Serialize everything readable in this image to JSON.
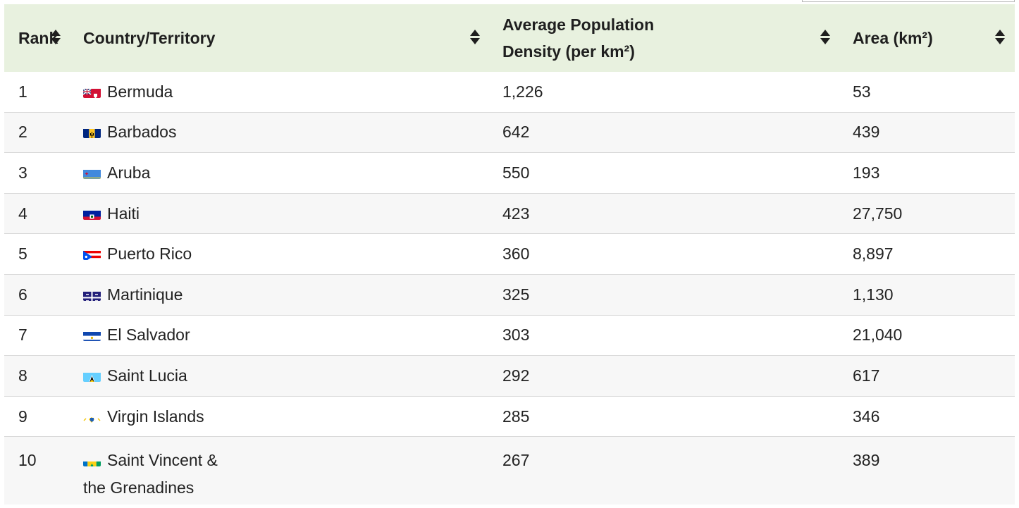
{
  "table": {
    "headers": {
      "rank": "Rank",
      "country": "Country/Territory",
      "density": "Average Population Density (per km²)",
      "area": "Area (km²)"
    },
    "rows": [
      {
        "rank": "1",
        "country": "Bermuda",
        "density": "1,226",
        "area": "53",
        "flag": "bermuda-flag-icon"
      },
      {
        "rank": "2",
        "country": "Barbados",
        "density": "642",
        "area": "439",
        "flag": "barbados-flag-icon"
      },
      {
        "rank": "3",
        "country": "Aruba",
        "density": "550",
        "area": "193",
        "flag": "aruba-flag-icon"
      },
      {
        "rank": "4",
        "country": "Haiti",
        "density": "423",
        "area": "27,750",
        "flag": "haiti-flag-icon"
      },
      {
        "rank": "5",
        "country": "Puerto Rico",
        "density": "360",
        "area": "8,897",
        "flag": "puerto-rico-flag-icon"
      },
      {
        "rank": "6",
        "country": "Martinique",
        "density": "325",
        "area": "1,130",
        "flag": "martinique-flag-icon"
      },
      {
        "rank": "7",
        "country": "El Salvador",
        "density": "303",
        "area": "21,040",
        "flag": "el-salvador-flag-icon"
      },
      {
        "rank": "8",
        "country": "Saint Lucia",
        "density": "292",
        "area": "617",
        "flag": "saint-lucia-flag-icon"
      },
      {
        "rank": "9",
        "country": "Virgin Islands",
        "density": "285",
        "area": "346",
        "flag": "virgin-islands-flag-icon"
      },
      {
        "rank": "10",
        "country": "Saint Vincent & the Grenadines",
        "density": "267",
        "area": "389",
        "flag": "saint-vincent-flag-icon"
      }
    ]
  },
  "colors": {
    "header_bg": "#e8f1df",
    "row_stripe": "#f7f7f7",
    "divider": "#d9d9d9"
  }
}
